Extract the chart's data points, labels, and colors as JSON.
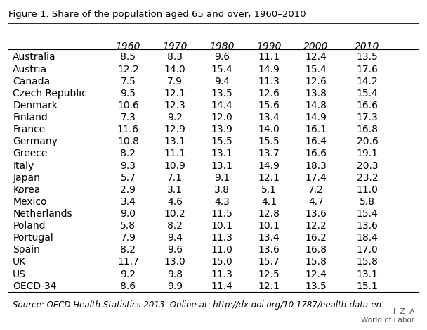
{
  "title": "Figure 1. Share of the population aged 65 and over, 1960–2010",
  "columns": [
    "",
    "1960",
    "1970",
    "1980",
    "1990",
    "2000",
    "2010"
  ],
  "rows": [
    [
      "Australia",
      8.5,
      8.3,
      9.6,
      11.1,
      12.4,
      13.5
    ],
    [
      "Austria",
      12.2,
      14.0,
      15.4,
      14.9,
      15.4,
      17.6
    ],
    [
      "Canada",
      7.5,
      7.9,
      9.4,
      11.3,
      12.6,
      14.2
    ],
    [
      "Czech Republic",
      9.5,
      12.1,
      13.5,
      12.6,
      13.8,
      15.4
    ],
    [
      "Denmark",
      10.6,
      12.3,
      14.4,
      15.6,
      14.8,
      16.6
    ],
    [
      "Finland",
      7.3,
      9.2,
      12.0,
      13.4,
      14.9,
      17.3
    ],
    [
      "France",
      11.6,
      12.9,
      13.9,
      14.0,
      16.1,
      16.8
    ],
    [
      "Germany",
      10.8,
      13.1,
      15.5,
      15.5,
      16.4,
      20.6
    ],
    [
      "Greece",
      8.2,
      11.1,
      13.1,
      13.7,
      16.6,
      19.1
    ],
    [
      "Italy",
      9.3,
      10.9,
      13.1,
      14.9,
      18.3,
      20.3
    ],
    [
      "Japan",
      5.7,
      7.1,
      9.1,
      12.1,
      17.4,
      23.2
    ],
    [
      "Korea",
      2.9,
      3.1,
      3.8,
      5.1,
      7.2,
      11.0
    ],
    [
      "Mexico",
      3.4,
      4.6,
      4.3,
      4.1,
      4.7,
      5.8
    ],
    [
      "Netherlands",
      9.0,
      10.2,
      11.5,
      12.8,
      13.6,
      15.4
    ],
    [
      "Poland",
      5.8,
      8.2,
      10.1,
      10.1,
      12.2,
      13.6
    ],
    [
      "Portugal",
      7.9,
      9.4,
      11.3,
      13.4,
      16.2,
      18.4
    ],
    [
      "Spain",
      8.2,
      9.6,
      11.0,
      13.6,
      16.8,
      17.0
    ],
    [
      "UK",
      11.7,
      13.0,
      15.0,
      15.7,
      15.8,
      15.8
    ],
    [
      "US",
      9.2,
      9.8,
      11.3,
      12.5,
      12.4,
      13.1
    ],
    [
      "OECD-34",
      8.6,
      9.9,
      11.4,
      12.1,
      13.5,
      15.1
    ]
  ],
  "source_text": "Source: OECD Health Statistics 2013. Online at: http://dx.doi.org/10.1787/health-data-en",
  "iza_text": "I  Z  A\nWorld of Labor",
  "header_italic": true,
  "bg_color": "#ffffff",
  "border_color": "#000000",
  "title_fontsize": 9.5,
  "header_fontsize": 10,
  "data_fontsize": 10,
  "source_fontsize": 8.5
}
